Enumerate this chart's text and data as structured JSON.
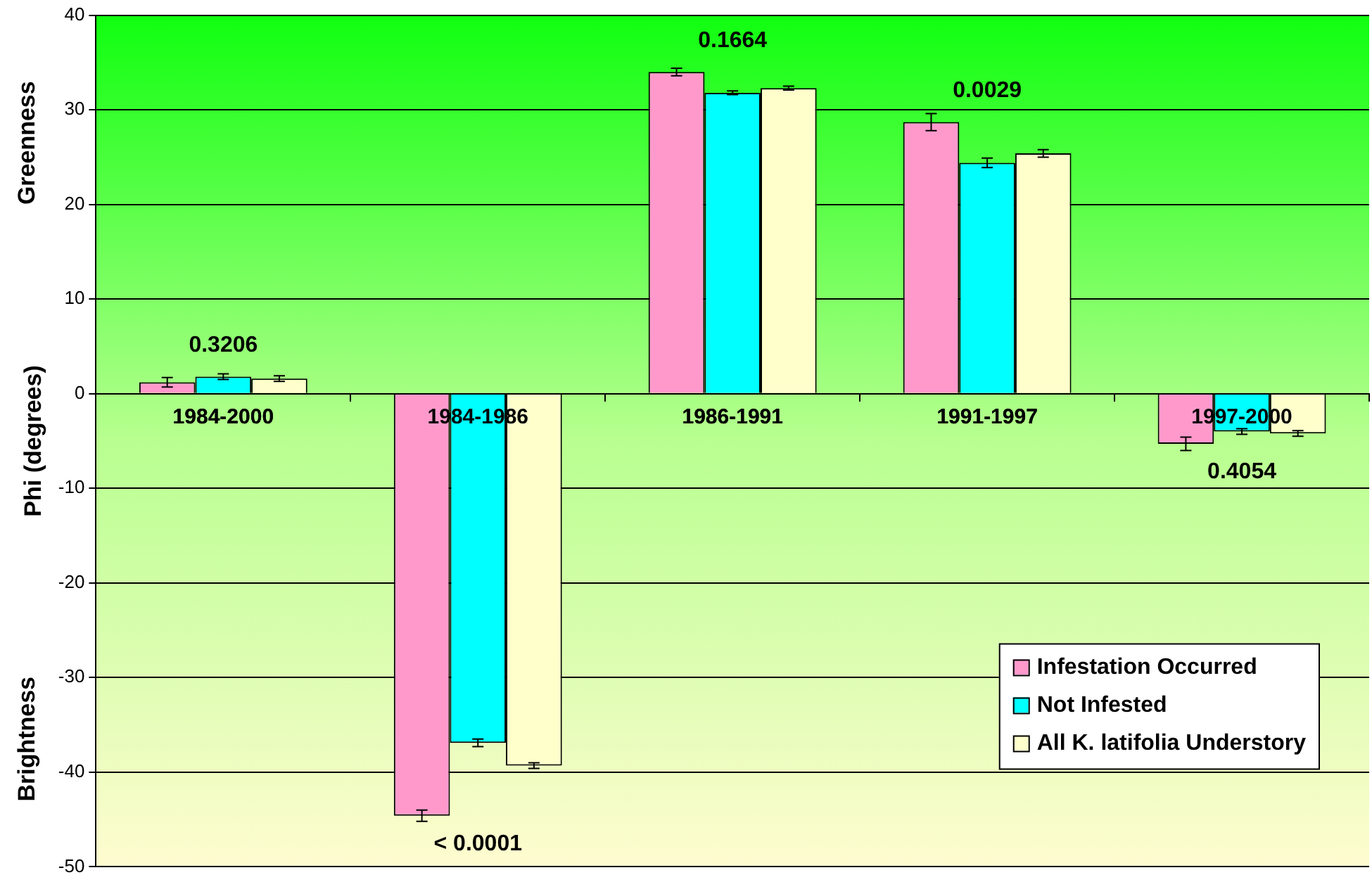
{
  "chart_data": {
    "type": "bar",
    "ylabel": "Phi (degrees)",
    "categories": [
      "1984-2000",
      "1984-1986",
      "1986-1991",
      "1991-1997",
      "1997-2000"
    ],
    "series": [
      {
        "name": "Infestation Occurred",
        "color": "#ff99cc",
        "values": [
          1.2,
          -44.6,
          34.0,
          28.7,
          -5.3
        ],
        "errors": [
          0.5,
          0.6,
          0.4,
          0.9,
          0.7
        ]
      },
      {
        "name": "Not Infested",
        "color": "#00ffff",
        "values": [
          1.8,
          -36.9,
          31.8,
          24.4,
          -4.0
        ],
        "errors": [
          0.3,
          0.4,
          0.2,
          0.5,
          0.3
        ]
      },
      {
        "name": "All K. latifolia Understory",
        "color": "#ffffcc",
        "values": [
          1.6,
          -39.3,
          32.3,
          25.4,
          -4.2
        ],
        "errors": [
          0.3,
          0.3,
          0.2,
          0.4,
          0.3
        ]
      }
    ],
    "annotations": [
      "Greenness",
      "Brightness",
      "0.3206",
      "< 0.0001",
      "0.1664",
      "0.0029",
      "0.4054"
    ],
    "ylim": [
      -50,
      40
    ],
    "yticks": [
      -50,
      -40,
      -30,
      -20,
      -10,
      0,
      10,
      20,
      30,
      40
    ],
    "grid": "y",
    "legend": "bottom right"
  }
}
